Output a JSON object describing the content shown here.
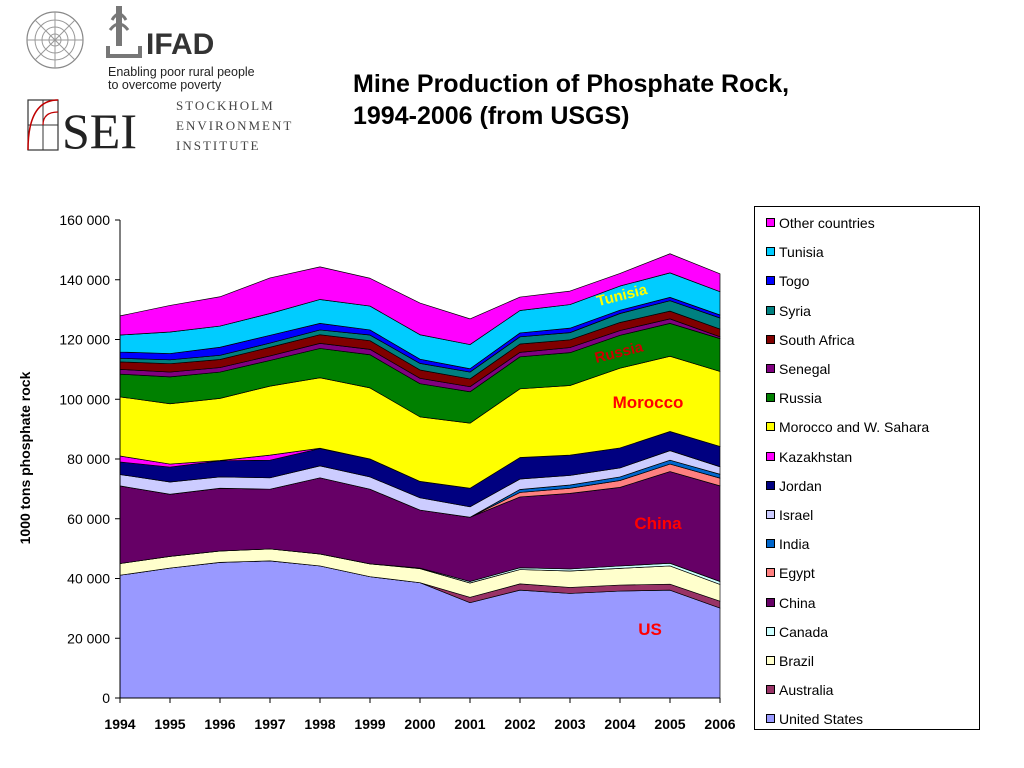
{
  "header": {
    "title_line1": "Mine Production of Phosphate Rock,",
    "title_line2": "1994-2006 (from USGS)",
    "ifad_name": "IFAD",
    "ifad_tagline_line1": "Enabling poor rural people",
    "ifad_tagline_line2": "to overcome poverty",
    "sei_abbrev": "SEI",
    "sei_line1": "STOCKHOLM",
    "sei_line2": "ENVIRONMENT",
    "sei_line3": "INSTITUTE"
  },
  "chart_data": {
    "type": "area",
    "stacked": true,
    "title": "Mine Production of Phosphate Rock, 1994-2006 (from USGS)",
    "xlabel": "",
    "ylabel": "1000 tons phosphate rock",
    "ylim": [
      0,
      160000
    ],
    "yticks": [
      0,
      20000,
      40000,
      60000,
      80000,
      100000,
      120000,
      140000,
      160000
    ],
    "ytick_labels": [
      "0",
      "20 000",
      "40 000",
      "60 000",
      "80 000",
      "100 000",
      "120 000",
      "140 000",
      "160 000"
    ],
    "x": [
      "1994",
      "1995",
      "1996",
      "1997",
      "1998",
      "1999",
      "2000",
      "2001",
      "2002",
      "2003",
      "2004",
      "2005",
      "2006"
    ],
    "grid": false,
    "legend_position": "right",
    "series": [
      {
        "name": "United States",
        "color": "#9999FF",
        "values": [
          41100,
          43500,
          45400,
          45900,
          44200,
          40600,
          38600,
          31900,
          36100,
          35000,
          35800,
          36100,
          30100
        ]
      },
      {
        "name": "Australia",
        "color": "#993366",
        "values": [
          0,
          0,
          0,
          0,
          0,
          0,
          0,
          1800,
          2100,
          2000,
          2000,
          2000,
          2300
        ]
      },
      {
        "name": "Brazil",
        "color": "#FFFFCC",
        "values": [
          3900,
          3900,
          3800,
          4000,
          4000,
          4300,
          4700,
          4800,
          4800,
          5500,
          5600,
          6100,
          5600
        ]
      },
      {
        "name": "Canada",
        "color": "#CCFFFF",
        "values": [
          0,
          0,
          0,
          0,
          0,
          0,
          200,
          500,
          600,
          700,
          800,
          900,
          1000
        ]
      },
      {
        "name": "China",
        "color": "#660066",
        "values": [
          26000,
          20800,
          21000,
          20000,
          25500,
          25000,
          19400,
          21500,
          23700,
          25300,
          26300,
          30700,
          32000
        ]
      },
      {
        "name": "Egypt",
        "color": "#FF8080",
        "values": [
          0,
          0,
          0,
          0,
          0,
          0,
          0,
          0,
          1500,
          1700,
          2300,
          2500,
          2600
        ]
      },
      {
        "name": "India",
        "color": "#0066CC",
        "values": [
          0,
          0,
          0,
          0,
          0,
          0,
          0,
          0,
          1000,
          1100,
          1200,
          1300,
          1300
        ]
      },
      {
        "name": "Israel",
        "color": "#CCCCFF",
        "values": [
          3800,
          4100,
          3800,
          3800,
          4000,
          4100,
          4100,
          3500,
          3500,
          3200,
          3000,
          3200,
          2500
        ]
      },
      {
        "name": "Jordan",
        "color": "#000080",
        "values": [
          4200,
          5000,
          5400,
          5900,
          5800,
          6000,
          5500,
          6200,
          7200,
          6800,
          6700,
          6400,
          6800
        ]
      },
      {
        "name": "Kazakhstan",
        "color": "#FF00FF",
        "values": [
          2000,
          1000,
          100,
          1700,
          100,
          0,
          0,
          0,
          0,
          0,
          0,
          0,
          0
        ]
      },
      {
        "name": "Morocco and W. Sahara",
        "color": "#FFFF00",
        "values": [
          19800,
          20200,
          20800,
          23100,
          23600,
          23800,
          21600,
          21800,
          23000,
          23300,
          26700,
          25200,
          25100
        ]
      },
      {
        "name": "Russia",
        "color": "#008000",
        "values": [
          7600,
          9000,
          8800,
          8600,
          9800,
          11100,
          11100,
          10500,
          10700,
          11000,
          11000,
          11000,
          11000
        ]
      },
      {
        "name": "Senegal",
        "color": "#800080",
        "values": [
          1600,
          1600,
          1500,
          1500,
          1700,
          1800,
          1800,
          1700,
          1500,
          1700,
          1600,
          1500,
          600
        ]
      },
      {
        "name": "South Africa",
        "color": "#800000",
        "values": [
          2500,
          2800,
          2700,
          2900,
          2900,
          2900,
          2800,
          2600,
          2800,
          2600,
          2700,
          2600,
          2600
        ]
      },
      {
        "name": "Syria",
        "color": "#008080",
        "values": [
          1200,
          1300,
          1400,
          1400,
          1600,
          1900,
          2200,
          2300,
          2400,
          2400,
          3000,
          3500,
          3700
        ]
      },
      {
        "name": "Togo",
        "color": "#0000FF",
        "values": [
          2100,
          2100,
          2700,
          2600,
          2200,
          1700,
          1400,
          1100,
          1300,
          1500,
          1100,
          1100,
          1000
        ]
      },
      {
        "name": "Tunisia",
        "color": "#00CCFF",
        "values": [
          5700,
          7200,
          7100,
          7300,
          8000,
          8000,
          8200,
          8100,
          7500,
          7900,
          8100,
          8200,
          7800
        ]
      },
      {
        "name": "Other countries",
        "color": "#FF00FF",
        "values": [
          6400,
          8900,
          9800,
          11900,
          10900,
          9300,
          10600,
          8600,
          4500,
          4500,
          4200,
          6400,
          6000
        ]
      }
    ],
    "annotations": [
      {
        "text": "US",
        "color": "#FF0000"
      },
      {
        "text": "China",
        "color": "#FF0000"
      },
      {
        "text": "Morocco",
        "color": "#FF0000"
      },
      {
        "text": "Russia",
        "color": "#CC0000"
      },
      {
        "text": "Tunisia",
        "color": "#FFFF00"
      }
    ]
  }
}
